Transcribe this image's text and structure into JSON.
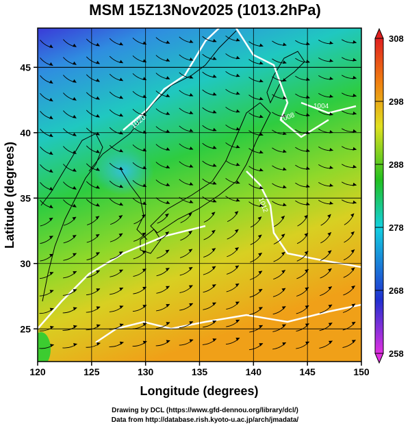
{
  "title": "MSM 15Z13Nov2025 (1013.2hPa)",
  "axes": {
    "xlabel": "Longitude (degrees)",
    "ylabel": "Latitude  (degrees)",
    "xticks": [
      "120",
      "125",
      "130",
      "135",
      "140",
      "145",
      "150"
    ],
    "yticks": [
      "25",
      "30",
      "35",
      "40",
      "45"
    ],
    "xlim": [
      120,
      150
    ],
    "ylim": [
      22.5,
      48
    ]
  },
  "colorbar": {
    "ticks": [
      "308",
      "298",
      "288",
      "278",
      "268",
      "258"
    ],
    "range": [
      258,
      308
    ],
    "colors": [
      "#e030e0",
      "#1a2fd0",
      "#13d0e0",
      "#22c020",
      "#e0e020",
      "#f08010",
      "#e02020"
    ]
  },
  "contour_labels": [
    "1020",
    "1008",
    "1004",
    "1012"
  ],
  "footer": {
    "line1": "Drawing by DCL (https://www.gfd-dennou.org/library/dcl/)",
    "line2": "Data from http://database.rish.kyoto-u.ac.jp/arch/jmadata/"
  }
}
